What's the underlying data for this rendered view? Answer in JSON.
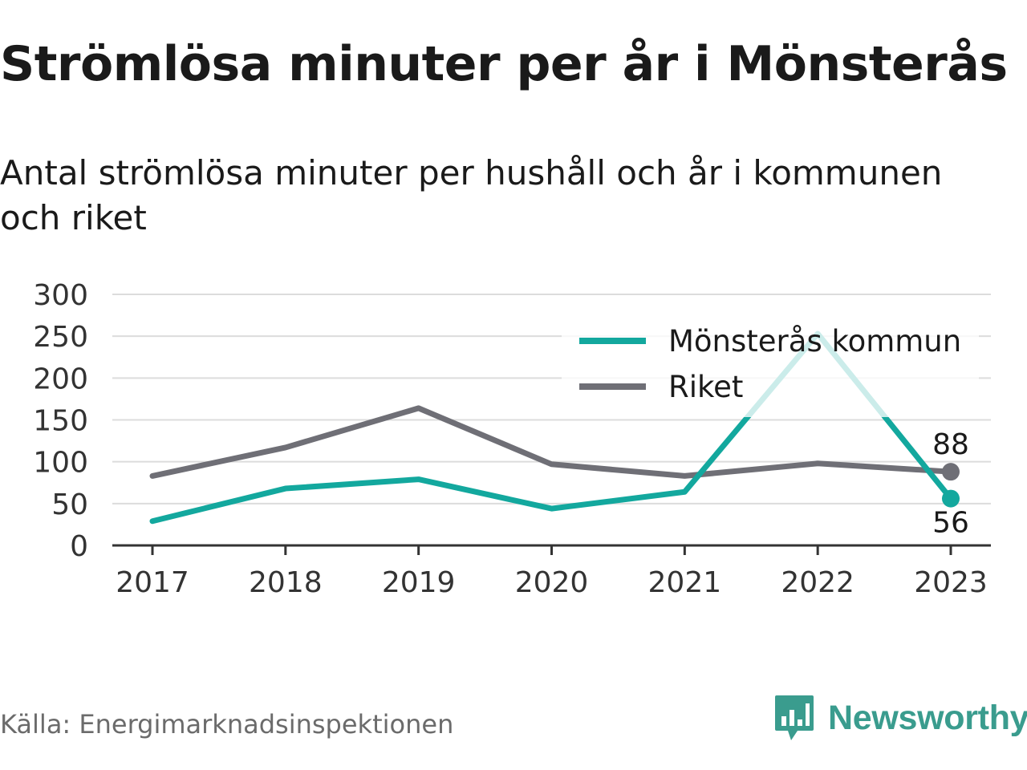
{
  "title": "Strömlösa minuter per år i Mönsterås",
  "subtitle": "Antal strömlösa minuter per hushåll och år i kommunen och riket",
  "source": "Källa: Energimarknadsinspektionen",
  "brand": {
    "name": "Newsworthy",
    "icon": "newsworthy-logo-icon",
    "color": "#3a9c8e"
  },
  "chart_data": {
    "type": "line",
    "x": [
      "2017",
      "2018",
      "2019",
      "2020",
      "2021",
      "2022",
      "2023"
    ],
    "ylim": [
      0,
      300
    ],
    "yticks": [
      0,
      50,
      100,
      150,
      200,
      250,
      300
    ],
    "grid": true,
    "legend_position": "top-right",
    "series": [
      {
        "name": "Mönsterås kommun",
        "color": "#13a89e",
        "values": [
          29,
          68,
          79,
          44,
          64,
          253,
          56
        ],
        "end_label": "56"
      },
      {
        "name": "Riket",
        "color": "#6f6f76",
        "values": [
          83,
          117,
          164,
          97,
          83,
          98,
          88
        ],
        "end_label": "88"
      }
    ]
  }
}
